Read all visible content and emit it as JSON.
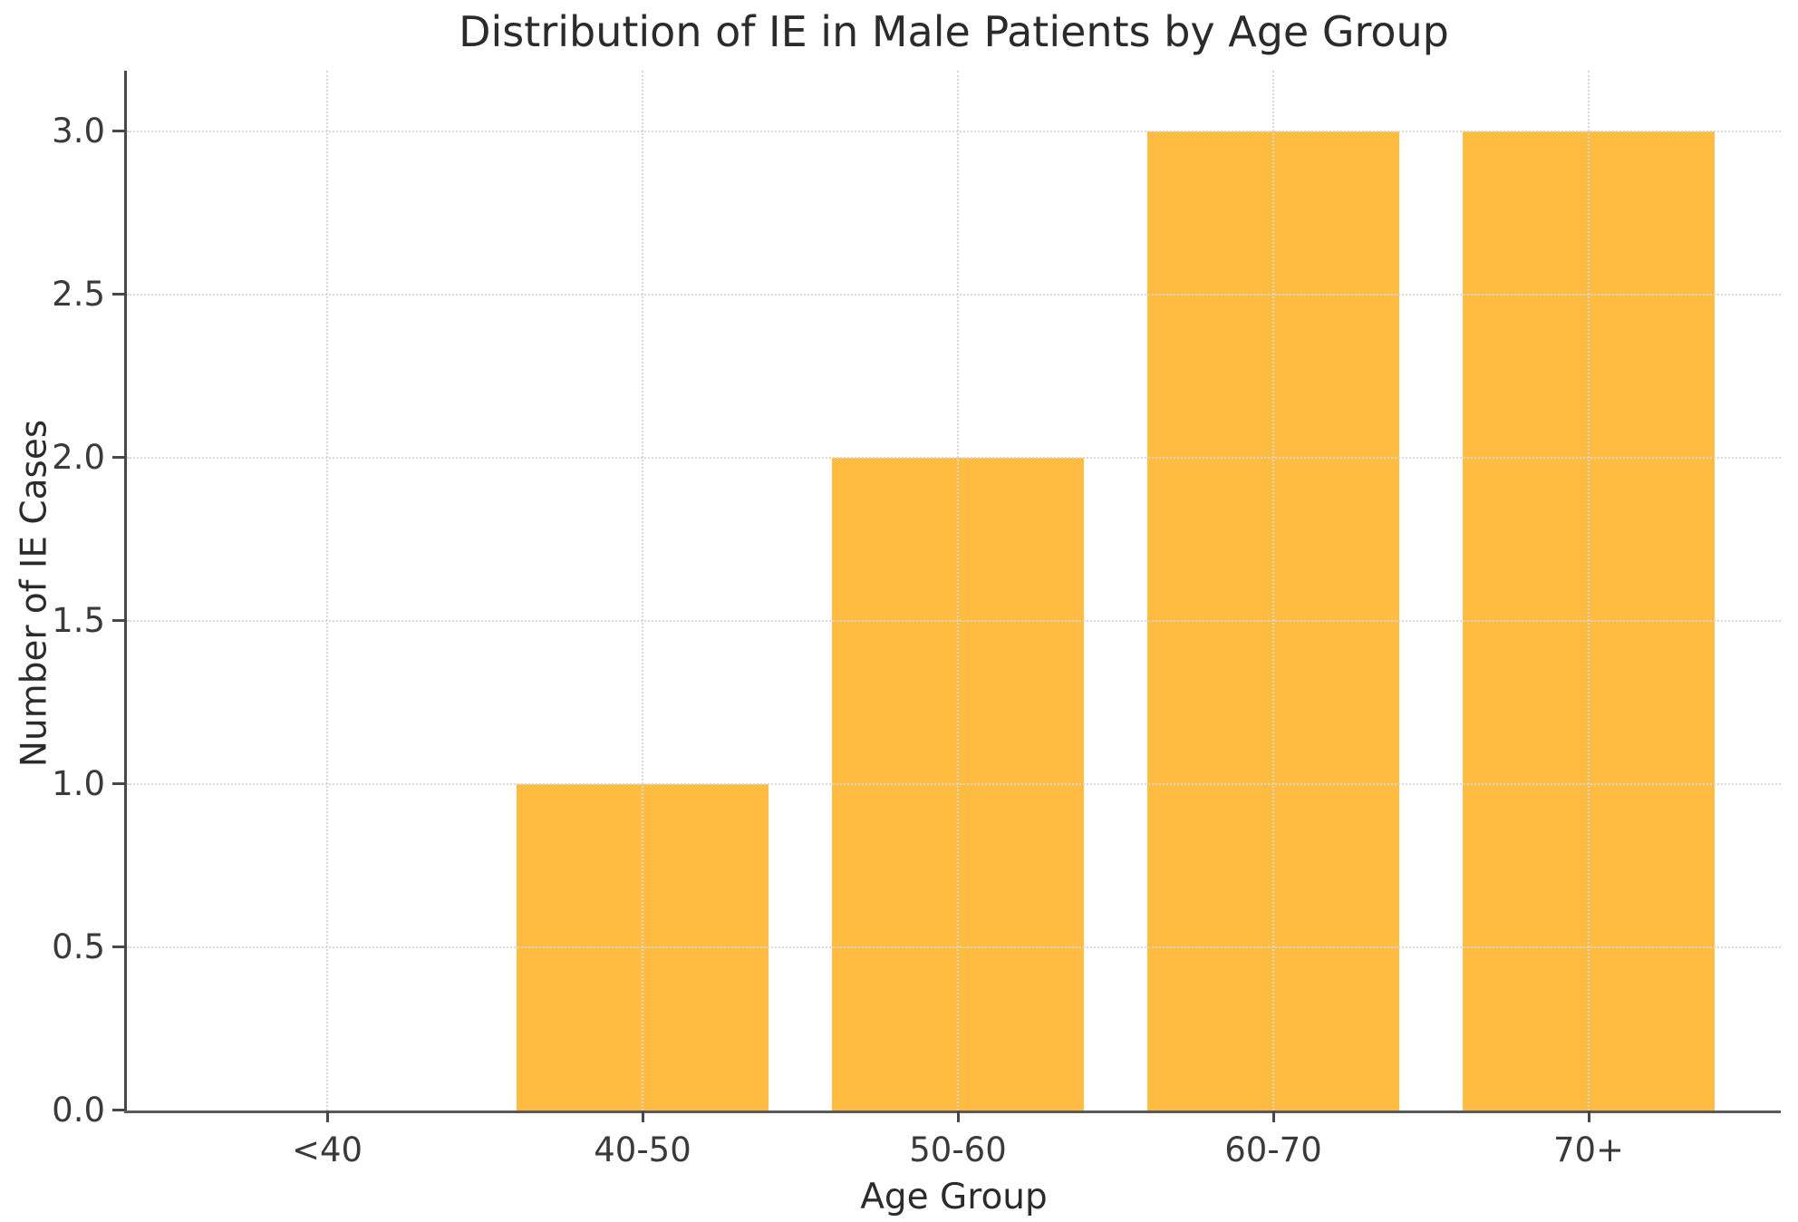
{
  "chart_data": {
    "type": "bar",
    "title": "Distribution of IE in Male Patients by Age Group",
    "xlabel": "Age Group",
    "ylabel": "Number of IE Cases",
    "categories": [
      "<40",
      "40-50",
      "50-60",
      "60-70",
      "70+"
    ],
    "values": [
      0,
      1,
      2,
      3,
      3
    ],
    "yticks": [
      {
        "value": 0.0,
        "label": "0.0"
      },
      {
        "value": 0.5,
        "label": "0.5"
      },
      {
        "value": 1.0,
        "label": "1.0"
      },
      {
        "value": 1.5,
        "label": "1.5"
      },
      {
        "value": 2.0,
        "label": "2.0"
      },
      {
        "value": 2.5,
        "label": "2.5"
      },
      {
        "value": 3.0,
        "label": "3.0"
      }
    ],
    "ylim": [
      0,
      3.18
    ],
    "bar_color": "#FFBC40",
    "grid": "dotted, light gray, horizontal and vertical, drawn over bars",
    "legend": "none"
  }
}
